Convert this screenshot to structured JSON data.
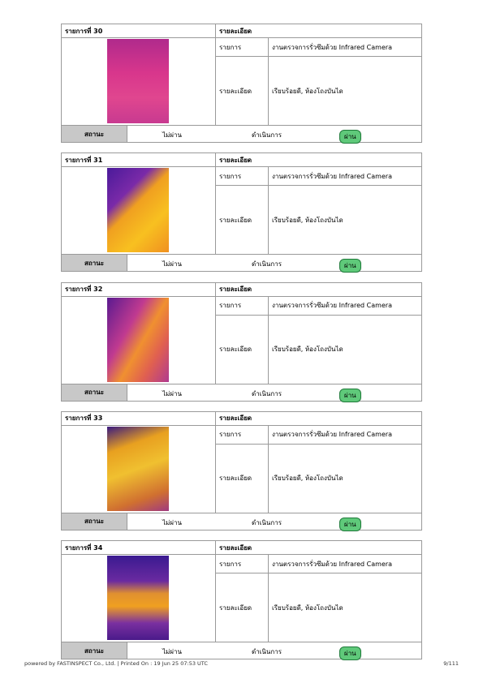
{
  "items": [
    {
      "title": "รายการที่ 30",
      "detail_header": "รายละเอียด",
      "item_label": "รายการ",
      "item_value": "งานตรวจการรั่วซึมด้วย Infrared Camera",
      "detail_label": "รายละเอียด",
      "detail_value": "เรียบร้อยดี, ห้องโถงบันได",
      "status_label": "สถานะ",
      "options": [
        "ไม่ผ่าน",
        "ดำเนินการ",
        "ผ่าน"
      ]
    },
    {
      "title": "รายการที่ 31",
      "detail_header": "รายละเอียด",
      "item_label": "รายการ",
      "item_value": "งานตรวจการรั่วซึมด้วย Infrared Camera",
      "detail_label": "รายละเอียด",
      "detail_value": "เรียบร้อยดี, ห้องโถงบันได",
      "status_label": "สถานะ",
      "options": [
        "ไม่ผ่าน",
        "ดำเนินการ",
        "ผ่าน"
      ]
    },
    {
      "title": "รายการที่ 32",
      "detail_header": "รายละเอียด",
      "item_label": "รายการ",
      "item_value": "งานตรวจการรั่วซึมด้วย Infrared Camera",
      "detail_label": "รายละเอียด",
      "detail_value": "เรียบร้อยดี, ห้องโถงบันได",
      "status_label": "สถานะ",
      "options": [
        "ไม่ผ่าน",
        "ดำเนินการ",
        "ผ่าน"
      ]
    },
    {
      "title": "รายการที่ 33",
      "detail_header": "รายละเอียด",
      "item_label": "รายการ",
      "item_value": "งานตรวจการรั่วซึมด้วย Infrared Camera",
      "detail_label": "รายละเอียด",
      "detail_value": "เรียบร้อยดี, ห้องโถงบันได",
      "status_label": "สถานะ",
      "options": [
        "ไม่ผ่าน",
        "ดำเนินการ",
        "ผ่าน"
      ]
    },
    {
      "title": "รายการที่ 34",
      "detail_header": "รายละเอียด",
      "item_label": "รายการ",
      "item_value": "งานตรวจการรั่วซึมด้วย Infrared Camera",
      "detail_label": "รายละเอียด",
      "detail_value": "เรียบร้อยดี, ห้องโถงบันได",
      "status_label": "สถานะ",
      "options": [
        "ไม่ผ่าน",
        "ดำเนินการ",
        "ผ่าน"
      ]
    }
  ],
  "footer": {
    "text": "powered by FASTINSPECT Co., Ltd. | Printed On : 19 Jun 25 07:53 UTC",
    "page": "9/111"
  }
}
